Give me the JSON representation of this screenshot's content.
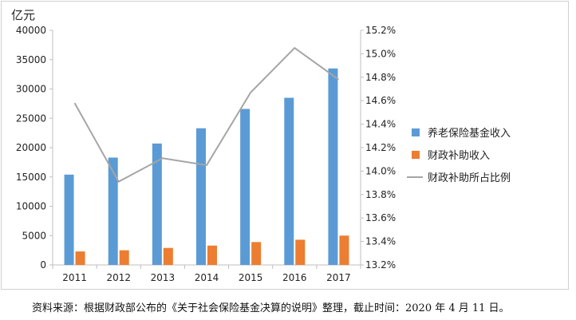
{
  "chart_data": {
    "type": "bar",
    "unit_label": "亿元",
    "categories": [
      "2011",
      "2012",
      "2013",
      "2014",
      "2015",
      "2016",
      "2017"
    ],
    "series": [
      {
        "name": "养老保险基金收入",
        "kind": "bar",
        "axis": "left",
        "values": [
          15400,
          18300,
          20700,
          23300,
          26600,
          28500,
          33500
        ]
      },
      {
        "name": "财政补助收入",
        "kind": "bar",
        "axis": "left",
        "values": [
          2300,
          2500,
          2900,
          3300,
          3900,
          4300,
          5000
        ]
      },
      {
        "name": "财政补助所占比例",
        "kind": "line",
        "axis": "right",
        "values": [
          14.58,
          13.91,
          14.11,
          14.05,
          14.67,
          15.05,
          14.78
        ]
      }
    ],
    "ylim_left": [
      0,
      40000
    ],
    "yticks_left": [
      "0",
      "5000",
      "10000",
      "15000",
      "20000",
      "25000",
      "30000",
      "35000",
      "40000"
    ],
    "ylim_right": [
      13.2,
      15.2
    ],
    "yticks_right": [
      "13.2%",
      "13.4%",
      "13.6%",
      "13.8%",
      "14.0%",
      "14.2%",
      "14.4%",
      "14.6%",
      "14.8%",
      "15.0%",
      "15.2%"
    ],
    "legend_position": "right",
    "grid": false,
    "colors": {
      "bar1": "#5b9bd5",
      "bar2": "#ed7d31",
      "line": "#a5a5a5"
    }
  },
  "source_note": "资料来源：根据财政部公布的《关于社会保险基金决算的说明》整理，截止时间：2020 年 4 月 11 日。"
}
